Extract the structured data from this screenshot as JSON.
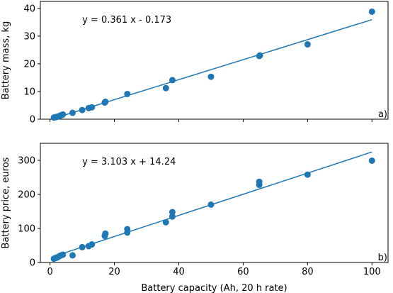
{
  "colors": {
    "series": "#1f77b4",
    "axis": "#000000",
    "background": "#ffffff"
  },
  "chart_data": [
    {
      "type": "scatter",
      "panel_label": "a)",
      "fit_label": "y = 0.361 x - 0.173",
      "xlabel": "",
      "ylabel": "Battery mass, kg",
      "xlim": [
        -3,
        105
      ],
      "ylim": [
        0,
        42.5
      ],
      "x_ticks": [
        0,
        20,
        40,
        60,
        80,
        100
      ],
      "x_tick_labels_visible": false,
      "y_ticks": [
        0,
        10,
        20,
        30,
        40
      ],
      "grid": false,
      "fit": {
        "slope": 0.361,
        "intercept": -0.173,
        "x_range": [
          1,
          100
        ]
      },
      "x": [
        1.2,
        1.6,
        2.0,
        2.3,
        2.6,
        3.0,
        3.4,
        4.0,
        7.0,
        10.0,
        12.0,
        13.0,
        17.0,
        17.2,
        24.0,
        36.0,
        38.0,
        50.0,
        65.0,
        65.2,
        80.0,
        100.0
      ],
      "y": [
        0.6,
        0.7,
        0.8,
        0.9,
        1.0,
        1.2,
        1.4,
        1.7,
        2.3,
        3.3,
        4.0,
        4.3,
        6.0,
        6.3,
        9.1,
        11.2,
        14.1,
        15.3,
        22.8,
        23.0,
        27.0,
        38.8
      ]
    },
    {
      "type": "scatter",
      "panel_label": "b)",
      "fit_label": "y = 3.103 x + 14.24",
      "xlabel": "Battery capacity (Ah, 20 h  rate)",
      "ylabel": "Battery price, euros",
      "xlim": [
        -3,
        105
      ],
      "ylim": [
        0,
        350
      ],
      "x_ticks": [
        0,
        20,
        40,
        60,
        80,
        100
      ],
      "x_tick_labels_visible": true,
      "y_ticks": [
        0,
        100,
        200,
        300
      ],
      "grid": false,
      "fit": {
        "slope": 3.103,
        "intercept": 14.24,
        "x_range": [
          1,
          100
        ]
      },
      "x": [
        1.2,
        1.6,
        2.0,
        2.3,
        2.6,
        3.0,
        3.4,
        4.0,
        7.0,
        10.0,
        12.0,
        13.0,
        17.0,
        17.2,
        24.0,
        24.0,
        36.0,
        38.0,
        38.0,
        50.0,
        65.0,
        65.0,
        80.0,
        100.0
      ],
      "y": [
        11,
        13,
        14,
        15,
        17,
        19,
        21,
        23,
        21,
        45,
        48,
        53,
        78,
        85,
        88,
        98,
        118,
        135,
        148,
        170,
        228,
        237,
        258,
        299
      ]
    }
  ]
}
